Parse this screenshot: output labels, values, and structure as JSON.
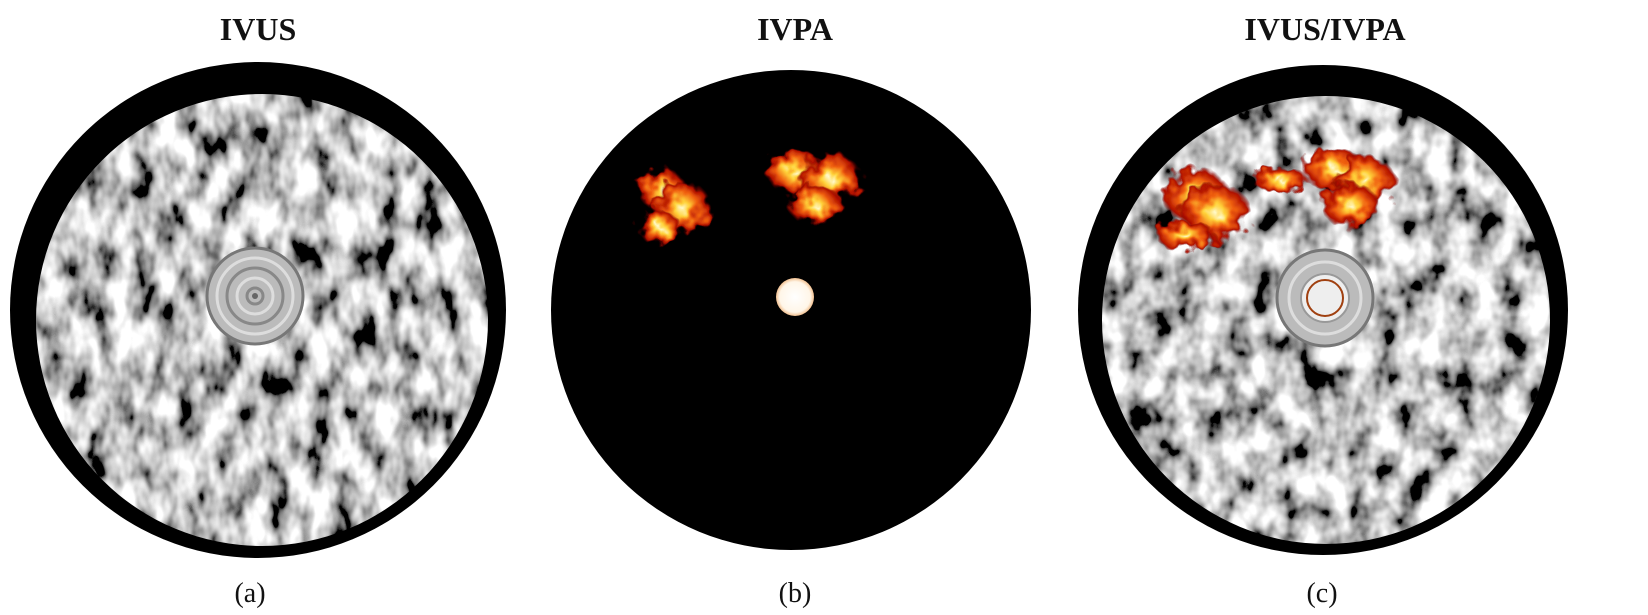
{
  "panels": [
    {
      "title": "IVUS",
      "caption": "(a)"
    },
    {
      "title": "IVPA",
      "caption": "(b)"
    },
    {
      "title": "IVUS/IVPA",
      "caption": "(c)"
    }
  ]
}
